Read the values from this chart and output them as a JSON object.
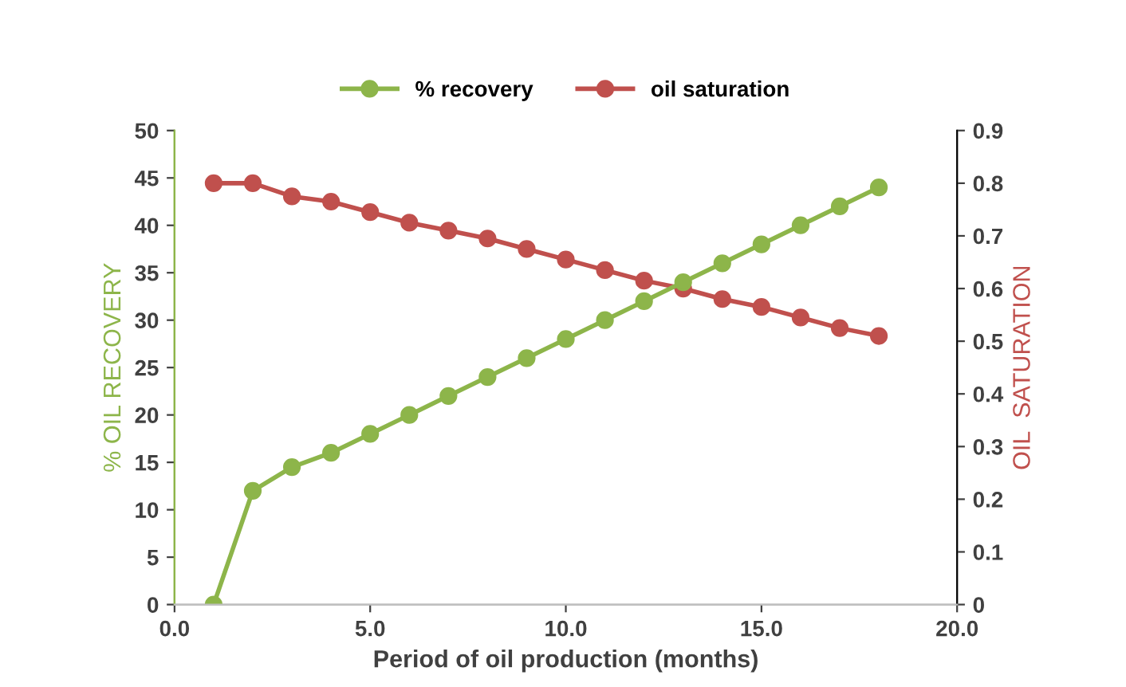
{
  "chart_data": {
    "type": "line",
    "xlabel": "Period of oil production (months)",
    "ylabel": "% OIL RECOVERY",
    "y2label": "OIL  SATURATION",
    "x": [
      1,
      2,
      3,
      4,
      5,
      6,
      7,
      8,
      9,
      10,
      11,
      12,
      13,
      14,
      15,
      16,
      17,
      18
    ],
    "series": [
      {
        "name": "% recovery",
        "color": "#8db54a",
        "values": [
          0,
          12,
          14.5,
          16,
          18,
          20,
          22,
          24,
          26,
          28,
          30,
          32,
          34,
          36,
          38,
          40,
          42,
          44
        ]
      },
      {
        "name": "oil saturation",
        "color": "#c0504d",
        "axis": "y2",
        "values": [
          0.8,
          0.8,
          0.775,
          0.765,
          0.745,
          0.725,
          0.71,
          0.695,
          0.675,
          0.655,
          0.635,
          0.615,
          0.6,
          0.58,
          0.565,
          0.545,
          0.525,
          0.51
        ]
      }
    ],
    "xlim": [
      0,
      20
    ],
    "xticks": [
      {
        "value": 0,
        "label": "0.0"
      },
      {
        "value": 5,
        "label": "5.0"
      },
      {
        "value": 10,
        "label": "10.0"
      },
      {
        "value": 15,
        "label": "15.0"
      },
      {
        "value": 20,
        "label": "20.0"
      }
    ],
    "ylim": [
      0,
      50
    ],
    "yticks": [
      0,
      5,
      10,
      15,
      20,
      25,
      30,
      35,
      40,
      45,
      50
    ],
    "y2lim": [
      0,
      0.9
    ],
    "y2ticks": [
      0,
      0.1,
      0.2,
      0.3,
      0.4,
      0.5,
      0.6,
      0.7,
      0.8,
      0.9
    ],
    "marker": "circle",
    "line_style": "solid",
    "grid": false,
    "legend": "top"
  }
}
